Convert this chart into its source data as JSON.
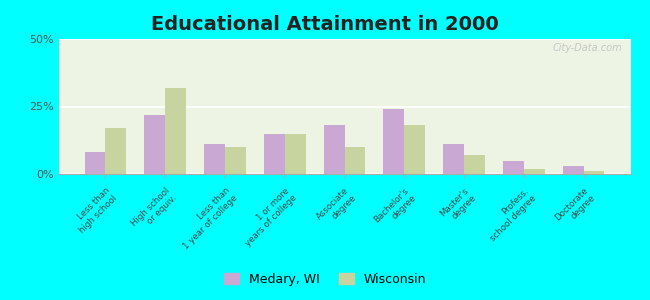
{
  "title": "Educational Attainment in 2000",
  "categories": [
    "Less than\nhigh school",
    "High school\nor equiv.",
    "Less than\n1 year of college",
    "1 or more\nyears of college",
    "Associate\ndegree",
    "Bachelor's\ndegree",
    "Master's\ndegree",
    "Profess.\nschool degree",
    "Doctorate\ndegree"
  ],
  "medary": [
    8,
    22,
    11,
    15,
    18,
    24,
    11,
    5,
    3
  ],
  "wisconsin": [
    17,
    32,
    10,
    15,
    10,
    18,
    7,
    2,
    1
  ],
  "medary_color": "#c9a8d4",
  "wisconsin_color": "#c8d4a0",
  "background_color": "#00ffff",
  "plot_bg": "#eef4e4",
  "watermark": "City-Data.com",
  "ylim": [
    0,
    50
  ],
  "yticks": [
    0,
    25,
    50
  ],
  "ytick_labels": [
    "0%",
    "25%",
    "50%"
  ],
  "legend_medary": "Medary, WI",
  "legend_wisconsin": "Wisconsin",
  "title_fontsize": 14,
  "bar_width": 0.35
}
